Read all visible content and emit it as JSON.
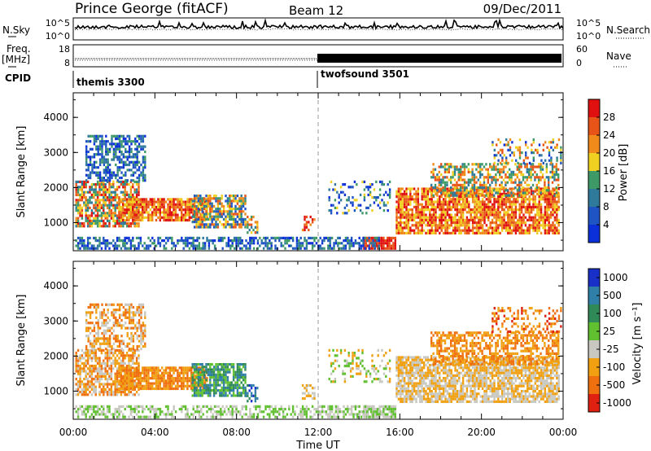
{
  "header": {
    "station": "Prince George (fitACF)",
    "beam": "Beam 12",
    "date": "09/Dec/2011"
  },
  "noise_panel": {
    "left_label": "N.Sky",
    "right_label": "N.Search",
    "left_ticks": [
      "10^5",
      "10^0"
    ],
    "right_ticks": [
      "10^5",
      "10^0"
    ]
  },
  "freq_panel": {
    "left_label_1": "Freq.",
    "left_label_2": "[MHz]",
    "right_label": "Nave",
    "left_ticks": [
      "18",
      "8"
    ],
    "right_ticks": [
      "60",
      "0"
    ]
  },
  "cpid": {
    "label": "CPID",
    "modes": [
      {
        "name": "themis 3300",
        "start": "00:00"
      },
      {
        "name": "twofsound 3501",
        "start": "12:00"
      }
    ]
  },
  "colors": {
    "power_scale": [
      "#0b2fd8",
      "#1f54c4",
      "#2f7a9a",
      "#3d9a66",
      "#f0d020",
      "#f08a1a",
      "#e85418",
      "#e01010"
    ],
    "velocity_scale": [
      "#1830c8",
      "#2f7fa8",
      "#2f8a58",
      "#60c030",
      "#c8c8c0",
      "#f0a010",
      "#f07010",
      "#e02010"
    ]
  },
  "chart_data": [
    {
      "type": "heatmap",
      "quantity": "Power",
      "xlabel": "",
      "ylabel": "Slant Range [km]",
      "yticks": [
        "1000",
        "2000",
        "3000",
        "4000"
      ],
      "ylim": [
        200,
        4700
      ],
      "xlim": [
        "00:00",
        "24:00"
      ],
      "colorbar": {
        "label": "Power [dB]",
        "ticks": [
          "4",
          "8",
          "12",
          "16",
          "20",
          "24",
          "28"
        ],
        "range": [
          0,
          32
        ]
      }
    },
    {
      "type": "heatmap",
      "quantity": "Velocity",
      "xlabel": "Time UT",
      "ylabel": "Slant Range [km]",
      "yticks": [
        "1000",
        "2000",
        "3000",
        "4000"
      ],
      "ylim": [
        200,
        4700
      ],
      "xlim": [
        "00:00",
        "24:00"
      ],
      "xticks": [
        "00:00",
        "04:00",
        "08:00",
        "12:00",
        "16:00",
        "20:00",
        "00:00"
      ],
      "colorbar": {
        "label": "Velocity [m s⁻¹]",
        "ticks": [
          "1000",
          "500",
          "100",
          "25",
          "-25",
          "-100",
          "-500",
          "-1000"
        ]
      }
    }
  ]
}
